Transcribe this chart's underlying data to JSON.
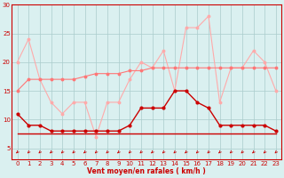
{
  "x": [
    0,
    1,
    2,
    3,
    4,
    5,
    6,
    7,
    8,
    9,
    10,
    11,
    12,
    13,
    14,
    15,
    16,
    17,
    18,
    19,
    20,
    21,
    22,
    23
  ],
  "rafales_max": [
    20,
    24,
    17,
    13,
    11,
    13,
    13,
    7,
    13,
    13,
    17,
    20,
    19,
    22,
    15,
    26,
    26,
    28,
    13,
    19,
    19,
    22,
    20,
    15
  ],
  "rafales_trend": [
    15,
    17,
    17,
    17,
    17,
    17,
    17.5,
    18,
    18,
    18,
    18.5,
    18.5,
    19,
    19,
    19,
    19,
    19,
    19,
    19,
    19,
    19,
    19,
    19,
    19
  ],
  "vent_moyen": [
    11,
    9,
    9,
    8,
    8,
    8,
    8,
    8,
    8,
    8,
    9,
    12,
    12,
    12,
    15,
    15,
    13,
    12,
    9,
    9,
    9,
    9,
    9,
    8
  ],
  "flat_line": [
    7.5,
    7.5,
    7.5,
    7.5,
    7.5,
    7.5,
    7.5,
    7.5,
    7.5,
    7.5,
    7.5,
    7.5,
    7.5,
    7.5,
    7.5,
    7.5,
    7.5,
    7.5,
    7.5,
    7.5,
    7.5,
    7.5,
    7.5,
    7.5
  ],
  "color_rafales_max": "#ffaaaa",
  "color_rafales_trend": "#ff7777",
  "color_vent_moyen": "#cc0000",
  "color_flat": "#cc0000",
  "color_bg": "#daf0f0",
  "color_grid": "#aacccc",
  "color_axis": "#cc0000",
  "xlabel": "Vent moyen/en rafales ( km/h )",
  "ylim": [
    3,
    30
  ],
  "yticks": [
    5,
    10,
    15,
    20,
    25,
    30
  ],
  "xticks": [
    0,
    1,
    2,
    3,
    4,
    5,
    6,
    7,
    8,
    9,
    10,
    11,
    12,
    13,
    14,
    15,
    16,
    17,
    18,
    19,
    20,
    21,
    22,
    23
  ]
}
